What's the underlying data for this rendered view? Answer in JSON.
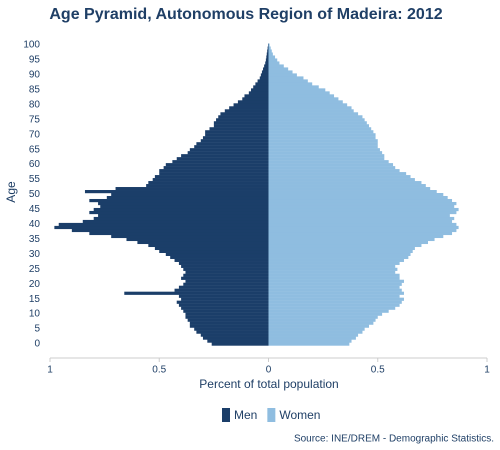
{
  "chart_data": {
    "type": "pyramid",
    "title": "Age Pyramid, Autonomous Region of Madeira: 2012",
    "x_label": "Percent of total population",
    "y_label": "Age",
    "source": "Source: INE/DREM - Demographic Statistics.",
    "legend": "bottom",
    "xlim": [
      -1,
      1
    ],
    "xticks": [
      {
        "value": -1,
        "label": "1"
      },
      {
        "value": -0.5,
        "label": "0.5"
      },
      0,
      0.5,
      1
    ],
    "categories": [
      "0",
      null,
      null,
      null,
      null,
      "5",
      null,
      null,
      null,
      null,
      "10",
      null,
      null,
      null,
      null,
      "15",
      null,
      null,
      null,
      null,
      "20",
      null,
      null,
      null,
      null,
      "25",
      null,
      null,
      null,
      null,
      "30",
      null,
      null,
      null,
      null,
      "35",
      null,
      null,
      null,
      null,
      "40",
      null,
      null,
      null,
      null,
      "45",
      null,
      null,
      null,
      null,
      "50",
      null,
      null,
      null,
      null,
      "55",
      null,
      null,
      null,
      null,
      "60",
      null,
      null,
      null,
      null,
      "65",
      null,
      null,
      null,
      null,
      "70",
      null,
      null,
      null,
      null,
      "75",
      null,
      null,
      null,
      null,
      "80",
      null,
      null,
      null,
      null,
      "85",
      null,
      null,
      null,
      null,
      "90",
      null,
      null,
      null,
      null,
      "95",
      null,
      null,
      null,
      null,
      "100"
    ],
    "series": [
      {
        "name": "Men",
        "color": "#1b3e69",
        "side": "left",
        "values": [
          0.26,
          0.28,
          0.3,
          0.31,
          0.33,
          0.34,
          0.36,
          0.36,
          0.37,
          0.38,
          0.38,
          0.39,
          0.4,
          0.41,
          0.42,
          0.4,
          0.41,
          0.66,
          0.43,
          0.41,
          0.39,
          0.38,
          0.4,
          0.39,
          0.38,
          0.39,
          0.4,
          0.41,
          0.43,
          0.45,
          0.47,
          0.5,
          0.52,
          0.55,
          0.6,
          0.65,
          0.72,
          0.82,
          0.9,
          0.98,
          0.96,
          0.85,
          0.8,
          0.78,
          0.82,
          0.8,
          0.77,
          0.78,
          0.82,
          0.74,
          0.72,
          0.84,
          0.7,
          0.56,
          0.55,
          0.53,
          0.52,
          0.5,
          0.5,
          0.48,
          0.47,
          0.44,
          0.42,
          0.4,
          0.37,
          0.36,
          0.34,
          0.33,
          0.31,
          0.3,
          0.29,
          0.29,
          0.27,
          0.25,
          0.25,
          0.24,
          0.23,
          0.22,
          0.2,
          0.18,
          0.16,
          0.14,
          0.12,
          0.11,
          0.09,
          0.08,
          0.07,
          0.06,
          0.05,
          0.04,
          0.035,
          0.03,
          0.025,
          0.02,
          0.015,
          0.012,
          0.01,
          0.008,
          0.006,
          0.004,
          0.002
        ]
      },
      {
        "name": "Women",
        "color": "#8fbde0",
        "side": "right",
        "values": [
          0.37,
          0.38,
          0.4,
          0.41,
          0.43,
          0.44,
          0.46,
          0.48,
          0.49,
          0.5,
          0.52,
          0.55,
          0.58,
          0.6,
          0.61,
          0.62,
          0.6,
          0.62,
          0.61,
          0.6,
          0.61,
          0.62,
          0.6,
          0.6,
          0.58,
          0.59,
          0.58,
          0.6,
          0.62,
          0.64,
          0.65,
          0.66,
          0.67,
          0.7,
          0.73,
          0.76,
          0.8,
          0.84,
          0.86,
          0.87,
          0.86,
          0.84,
          0.85,
          0.83,
          0.86,
          0.87,
          0.85,
          0.86,
          0.84,
          0.82,
          0.8,
          0.77,
          0.74,
          0.72,
          0.7,
          0.67,
          0.65,
          0.63,
          0.6,
          0.58,
          0.57,
          0.55,
          0.53,
          0.53,
          0.52,
          0.51,
          0.5,
          0.5,
          0.5,
          0.49,
          0.49,
          0.48,
          0.47,
          0.46,
          0.45,
          0.44,
          0.43,
          0.41,
          0.39,
          0.38,
          0.36,
          0.34,
          0.32,
          0.3,
          0.28,
          0.26,
          0.23,
          0.2,
          0.18,
          0.16,
          0.13,
          0.11,
          0.09,
          0.07,
          0.05,
          0.04,
          0.03,
          0.02,
          0.015,
          0.01,
          0.005
        ]
      }
    ]
  }
}
